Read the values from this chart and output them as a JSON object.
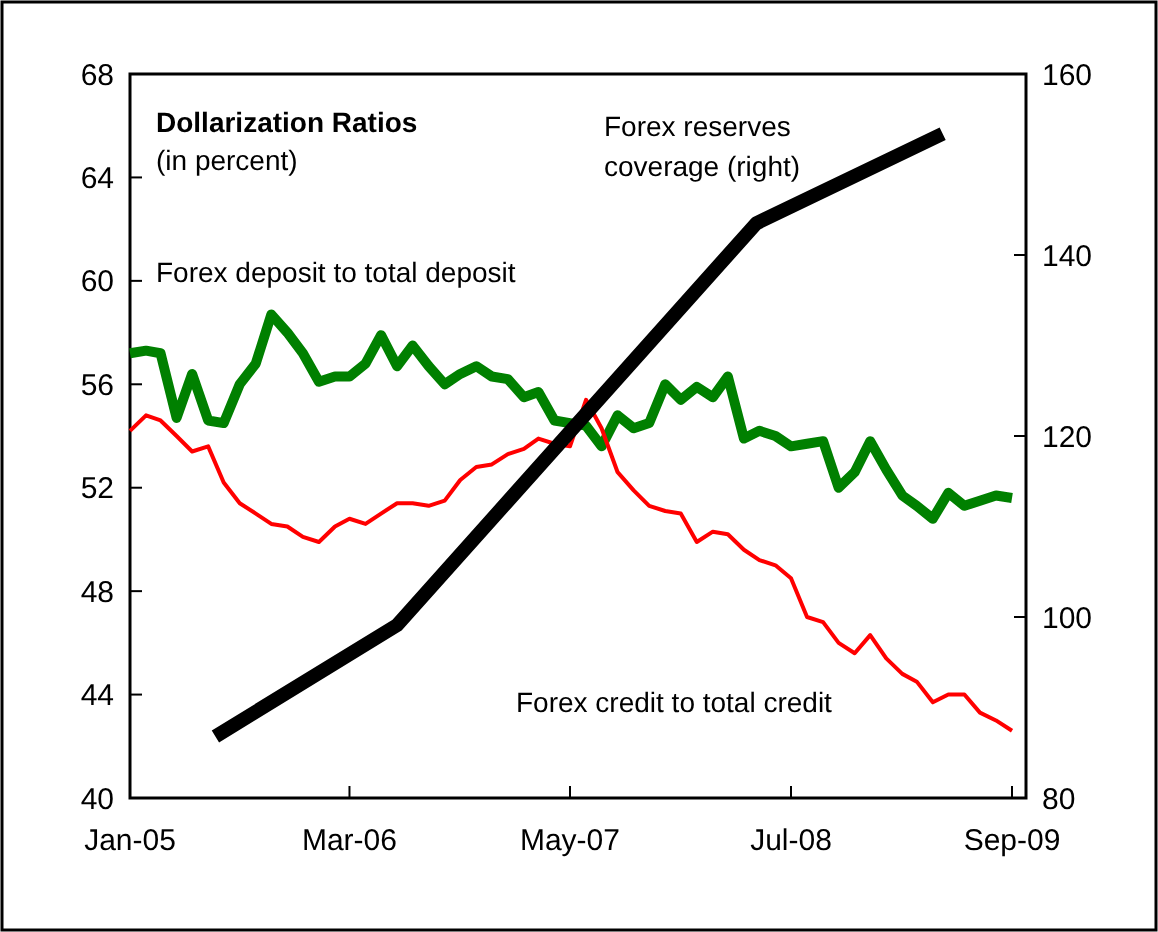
{
  "chart_data": {
    "type": "line",
    "title": "Dollarization Ratios",
    "subtitle": "(in percent)",
    "xlim": [
      "2005-01-01",
      "2009-09-28"
    ],
    "xticks": [
      {
        "value": "2005-01",
        "label": "Jan-05"
      },
      {
        "value": "2006-03",
        "label": "Mar-06"
      },
      {
        "value": "2007-05",
        "label": "May-07"
      },
      {
        "value": "2008-07",
        "label": "Jul-08"
      },
      {
        "value": "2009-09",
        "label": "Sep-09"
      }
    ],
    "ylim": [
      40,
      68
    ],
    "yticks": [
      40,
      44,
      48,
      52,
      56,
      60,
      64,
      68
    ],
    "y2lim": [
      80,
      160
    ],
    "y2ticks": [
      80,
      100,
      120,
      140,
      160
    ],
    "grid": false,
    "marker": "none",
    "line_style": "solid",
    "series": [
      {
        "name": "Forex deposit to total deposit",
        "color": "#008000",
        "x": [
          "2005-01",
          "2005-02",
          "2005-03",
          "2005-04",
          "2005-05",
          "2005-06",
          "2005-07",
          "2005-08",
          "2005-09",
          "2005-10",
          "2005-11",
          "2005-12",
          "2006-01",
          "2006-02",
          "2006-03",
          "2006-04",
          "2006-05",
          "2006-06",
          "2006-07",
          "2006-08",
          "2006-09",
          "2006-10",
          "2006-11",
          "2006-12",
          "2007-01",
          "2007-02",
          "2007-03",
          "2007-04",
          "2007-05",
          "2007-06",
          "2007-07",
          "2007-08",
          "2007-09",
          "2007-10",
          "2007-11",
          "2007-12",
          "2008-01",
          "2008-02",
          "2008-03",
          "2008-04",
          "2008-05",
          "2008-06",
          "2008-07",
          "2008-08",
          "2008-09",
          "2008-10",
          "2008-11",
          "2008-12",
          "2009-01",
          "2009-02",
          "2009-03",
          "2009-04",
          "2009-05",
          "2009-06",
          "2009-07",
          "2009-08",
          "2009-09"
        ],
        "values": [
          57.2,
          57.3,
          57.2,
          54.7,
          56.4,
          54.6,
          54.5,
          56.0,
          56.8,
          58.7,
          58.0,
          57.2,
          56.1,
          56.3,
          56.3,
          56.8,
          57.9,
          56.7,
          57.5,
          56.7,
          56.0,
          56.4,
          56.7,
          56.3,
          56.2,
          55.5,
          55.7,
          54.6,
          54.5,
          54.4,
          53.6,
          54.8,
          54.3,
          54.5,
          56.0,
          55.4,
          55.9,
          55.5,
          56.3,
          53.9,
          54.2,
          54.0,
          53.6,
          53.7,
          53.8,
          52.0,
          52.6,
          53.8,
          52.7,
          51.7,
          51.3,
          50.8,
          51.8,
          51.3,
          51.5,
          51.7,
          51.6
        ]
      },
      {
        "name": "Forex credit to total credit",
        "color": "#ff0000",
        "x": [
          "2005-01",
          "2005-02",
          "2005-03",
          "2005-04",
          "2005-05",
          "2005-06",
          "2005-07",
          "2005-08",
          "2005-09",
          "2005-10",
          "2005-11",
          "2005-12",
          "2006-01",
          "2006-02",
          "2006-03",
          "2006-04",
          "2006-05",
          "2006-06",
          "2006-07",
          "2006-08",
          "2006-09",
          "2006-10",
          "2006-11",
          "2006-12",
          "2007-01",
          "2007-02",
          "2007-03",
          "2007-04",
          "2007-05",
          "2007-06",
          "2007-07",
          "2007-08",
          "2007-09",
          "2007-10",
          "2007-11",
          "2007-12",
          "2008-01",
          "2008-02",
          "2008-03",
          "2008-04",
          "2008-05",
          "2008-06",
          "2008-07",
          "2008-08",
          "2008-09",
          "2008-10",
          "2008-11",
          "2008-12",
          "2009-01",
          "2009-02",
          "2009-03",
          "2009-04",
          "2009-05",
          "2009-06",
          "2009-07",
          "2009-08",
          "2009-09"
        ],
        "values": [
          54.2,
          54.8,
          54.6,
          54.0,
          53.4,
          53.6,
          52.2,
          51.4,
          51.0,
          50.6,
          50.5,
          50.1,
          49.9,
          50.5,
          50.8,
          50.6,
          51.0,
          51.4,
          51.4,
          51.3,
          51.5,
          52.3,
          52.8,
          52.9,
          53.3,
          53.5,
          53.9,
          53.7,
          53.6,
          55.4,
          54.3,
          52.6,
          51.9,
          51.3,
          51.1,
          51.0,
          49.9,
          50.3,
          50.2,
          49.6,
          49.2,
          49.0,
          48.5,
          47.0,
          46.8,
          46.0,
          45.6,
          46.3,
          45.4,
          44.8,
          44.5,
          43.7,
          44.0,
          44.0,
          43.3,
          43.0,
          42.6
        ]
      },
      {
        "name": "Forex reserves coverage (right)",
        "color": "#000000",
        "axis": "y2",
        "x": [
          "2005-06-15",
          "2006-06-01",
          "2008-04-25",
          "2009-04-20"
        ],
        "values": [
          86.8,
          99.1,
          143.5,
          153.4
        ]
      }
    ]
  }
}
